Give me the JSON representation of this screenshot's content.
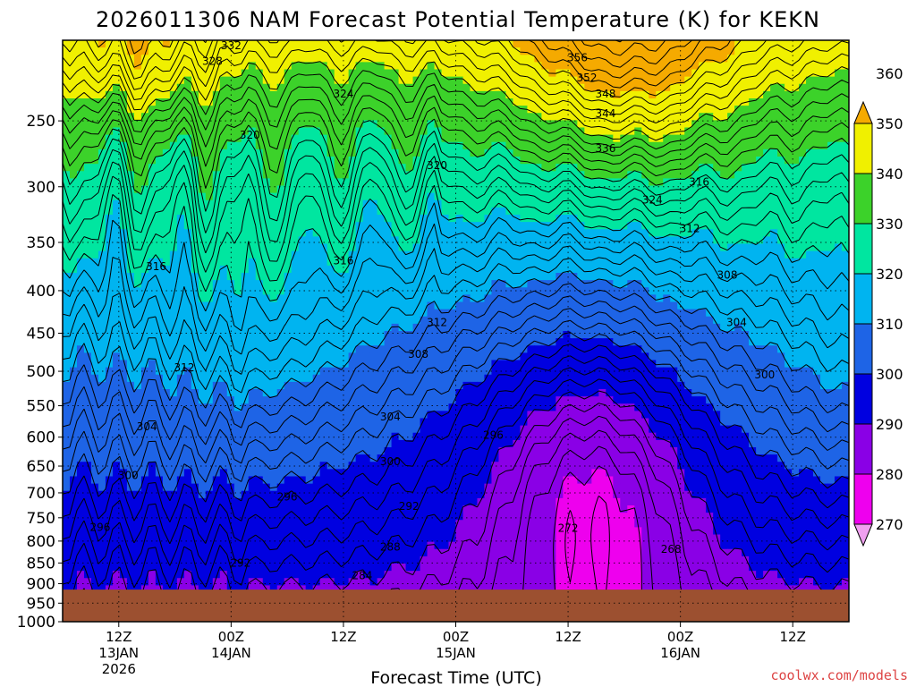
{
  "chart_data": {
    "type": "heatmap",
    "title": "2026011306 NAM Forecast Potential Temperature (K) for KEKN",
    "xlabel": "Forecast Time (UTC)",
    "ylabel": "",
    "y_axis": {
      "scale": "log",
      "range": [
        1000,
        200
      ],
      "ticks": [
        250,
        300,
        350,
        400,
        450,
        500,
        550,
        600,
        650,
        700,
        750,
        800,
        850,
        900,
        950,
        1000
      ]
    },
    "x_axis": {
      "range_hours": [
        0,
        84
      ]
    },
    "x_ticks": [
      {
        "hour": 6,
        "lines": [
          "12Z",
          "13JAN",
          "2026"
        ]
      },
      {
        "hour": 18,
        "lines": [
          "00Z",
          "14JAN"
        ]
      },
      {
        "hour": 30,
        "lines": [
          "12Z"
        ]
      },
      {
        "hour": 42,
        "lines": [
          "00Z",
          "15JAN"
        ]
      },
      {
        "hour": 54,
        "lines": [
          "12Z"
        ]
      },
      {
        "hour": 66,
        "lines": [
          "00Z",
          "16JAN"
        ]
      },
      {
        "hour": 78,
        "lines": [
          "12Z"
        ]
      }
    ],
    "colorbar": {
      "ticks": [
        270,
        280,
        290,
        300,
        310,
        320,
        330,
        340,
        350,
        360
      ],
      "bands": [
        {
          "range": [
            260,
            270
          ],
          "color": "#f0a0f0"
        },
        {
          "range": [
            270,
            280
          ],
          "color": "#ee00ee"
        },
        {
          "range": [
            280,
            290
          ],
          "color": "#8a00e6"
        },
        {
          "range": [
            290,
            300
          ],
          "color": "#0000e0"
        },
        {
          "range": [
            300,
            310
          ],
          "color": "#1e64e6"
        },
        {
          "range": [
            310,
            320
          ],
          "color": "#00b4f0"
        },
        {
          "range": [
            320,
            330
          ],
          "color": "#00e6a0"
        },
        {
          "range": [
            330,
            340
          ],
          "color": "#3cd22a"
        },
        {
          "range": [
            340,
            350
          ],
          "color": "#f0f000"
        },
        {
          "range": [
            350,
            360
          ],
          "color": "#f5aa00"
        }
      ]
    },
    "contour_interval": 2,
    "contour_labels": [
      {
        "v": 332,
        "t": 18,
        "p": 203
      },
      {
        "v": 328,
        "t": 16,
        "p": 212
      },
      {
        "v": 356,
        "t": 55,
        "p": 210
      },
      {
        "v": 352,
        "t": 56,
        "p": 222
      },
      {
        "v": 348,
        "t": 58,
        "p": 232
      },
      {
        "v": 344,
        "t": 58,
        "p": 245
      },
      {
        "v": 324,
        "t": 30,
        "p": 232
      },
      {
        "v": 320,
        "t": 20,
        "p": 260
      },
      {
        "v": 320,
        "t": 40,
        "p": 283
      },
      {
        "v": 336,
        "t": 58,
        "p": 270
      },
      {
        "v": 316,
        "t": 68,
        "p": 296
      },
      {
        "v": 324,
        "t": 63,
        "p": 311
      },
      {
        "v": 312,
        "t": 67,
        "p": 337
      },
      {
        "v": 316,
        "t": 10,
        "p": 374
      },
      {
        "v": 316,
        "t": 30,
        "p": 368
      },
      {
        "v": 308,
        "t": 71,
        "p": 383
      },
      {
        "v": 312,
        "t": 40,
        "p": 437
      },
      {
        "v": 304,
        "t": 72,
        "p": 437
      },
      {
        "v": 312,
        "t": 13,
        "p": 495
      },
      {
        "v": 308,
        "t": 38,
        "p": 477
      },
      {
        "v": 300,
        "t": 75,
        "p": 505
      },
      {
        "v": 304,
        "t": 9,
        "p": 583
      },
      {
        "v": 304,
        "t": 35,
        "p": 567
      },
      {
        "v": 296,
        "t": 46,
        "p": 597
      },
      {
        "v": 300,
        "t": 7,
        "p": 667
      },
      {
        "v": 300,
        "t": 35,
        "p": 642
      },
      {
        "v": 296,
        "t": 24,
        "p": 708
      },
      {
        "v": 292,
        "t": 37,
        "p": 727
      },
      {
        "v": 296,
        "t": 4,
        "p": 770
      },
      {
        "v": 288,
        "t": 35,
        "p": 813
      },
      {
        "v": 292,
        "t": 19,
        "p": 850
      },
      {
        "v": 284,
        "t": 32,
        "p": 880
      },
      {
        "v": 272,
        "t": 54,
        "p": 772
      },
      {
        "v": 268,
        "t": 65,
        "p": 818
      }
    ],
    "terrain_top_hPa": 915,
    "terrain_color": "#9c5030"
  },
  "credit": "coolwx.com/models"
}
